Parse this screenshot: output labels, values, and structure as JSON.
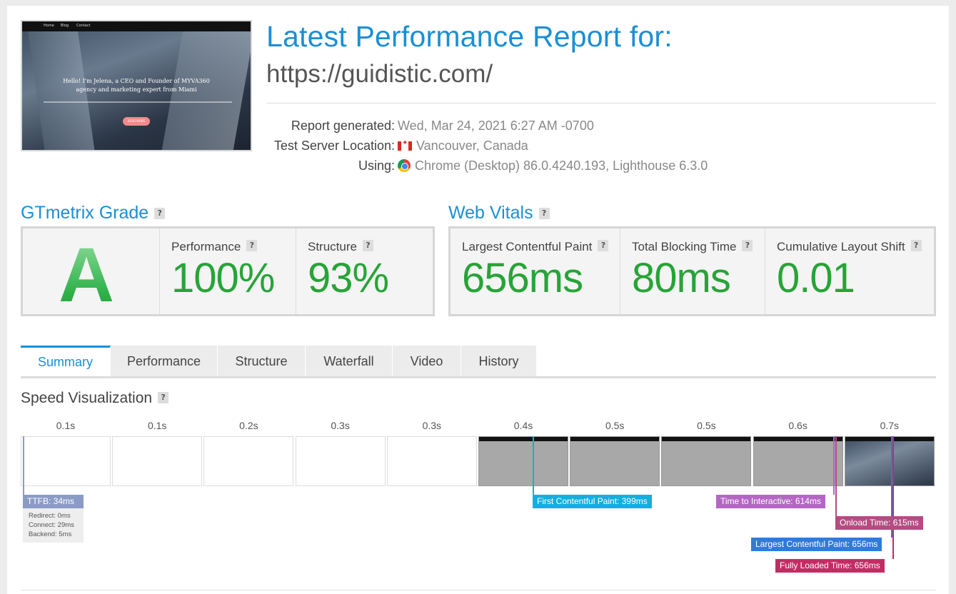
{
  "thumbnail": {
    "nav_items": [
      "Home",
      "Blog",
      "Contact"
    ],
    "hero_text": "Hello! I'm Jelena, a CEO and Founder of MYVA360 agency and marketing expert from Miami",
    "button_label": "READ MORE"
  },
  "header": {
    "title": "Latest Performance Report for:",
    "url": "https://guidistic.com/"
  },
  "meta": {
    "report_generated_label": "Report generated:",
    "report_generated_value": "Wed, Mar 24, 2021 6:27 AM -0700",
    "location_label": "Test Server Location:",
    "location_value": "Vancouver, Canada",
    "using_label": "Using:",
    "using_value": "Chrome (Desktop) 86.0.4240.193, Lighthouse 6.3.0",
    "icons": {
      "location": "canada-flag-icon",
      "using": "chrome-icon"
    }
  },
  "grade": {
    "title": "GTmetrix Grade",
    "help": "?",
    "letter": "A",
    "performance_label": "Performance",
    "performance_value": "100%",
    "structure_label": "Structure",
    "structure_value": "93%"
  },
  "vitals": {
    "title": "Web Vitals",
    "help": "?",
    "lcp_label": "Largest Contentful Paint",
    "lcp_value": "656ms",
    "tbt_label": "Total Blocking Time",
    "tbt_value": "80ms",
    "cls_label": "Cumulative Layout Shift",
    "cls_value": "0.01"
  },
  "tabs": [
    {
      "label": "Summary",
      "active": true
    },
    {
      "label": "Performance",
      "active": false
    },
    {
      "label": "Structure",
      "active": false
    },
    {
      "label": "Waterfall",
      "active": false
    },
    {
      "label": "Video",
      "active": false
    },
    {
      "label": "History",
      "active": false
    }
  ],
  "speed": {
    "title": "Speed Visualization",
    "help": "?",
    "ticks": [
      "0.1s",
      "0.1s",
      "0.2s",
      "0.3s",
      "0.3s",
      "0.4s",
      "0.5s",
      "0.5s",
      "0.6s",
      "0.7s"
    ],
    "markers": {
      "ttfb": "TTFB: 34ms",
      "redirect": "Redirect: 0ms",
      "connect": "Connect: 29ms",
      "backend": "Backend: 5ms",
      "fcp": "First Contentful Paint: 399ms",
      "tti": "Time to Interactive: 614ms",
      "onload": "Onload Time: 615ms",
      "lcp": "Largest Contentful Paint: 656ms",
      "fully_loaded": "Fully Loaded Time: 656ms"
    },
    "colors": {
      "ttfb": "#8a9cc6",
      "fcp": "#13aee0",
      "tti": "#b566c4",
      "onload": "#b44c82",
      "lcp": "#2f7bdb",
      "fully_loaded": "#c32c63"
    }
  }
}
